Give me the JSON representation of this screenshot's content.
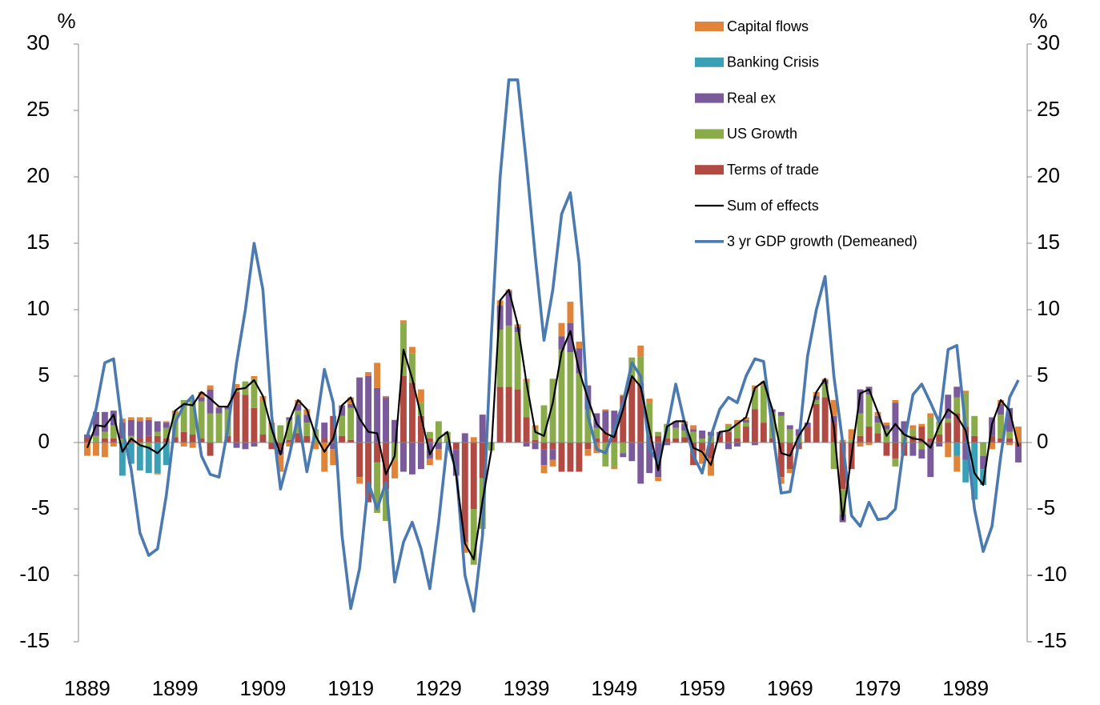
{
  "chart_data": {
    "type": "bar",
    "y_label": "%",
    "y2_label": "%",
    "legend": "top",
    "stacked": true,
    "xlim": [
      1888,
      1996
    ],
    "xticks": [
      1889,
      1899,
      1909,
      1919,
      1929,
      1939,
      1949,
      1959,
      1969,
      1979,
      1989
    ],
    "ylim": [
      -15,
      30
    ],
    "yticks": [
      -15,
      -10,
      -5,
      0,
      5,
      10,
      15,
      20,
      25,
      30
    ],
    "y2lim": [
      -15,
      30
    ],
    "y2ticks": [
      -15,
      -10,
      -5,
      0,
      5,
      10,
      15,
      20,
      25,
      30
    ],
    "x": [
      1889,
      1890,
      1891,
      1892,
      1893,
      1894,
      1895,
      1896,
      1897,
      1898,
      1899,
      1900,
      1901,
      1902,
      1903,
      1904,
      1905,
      1906,
      1907,
      1908,
      1909,
      1910,
      1911,
      1912,
      1913,
      1914,
      1915,
      1916,
      1917,
      1918,
      1919,
      1920,
      1921,
      1922,
      1923,
      1924,
      1925,
      1926,
      1927,
      1928,
      1929,
      1930,
      1931,
      1932,
      1933,
      1934,
      1935,
      1936,
      1937,
      1938,
      1939,
      1940,
      1941,
      1942,
      1943,
      1944,
      1945,
      1946,
      1947,
      1948,
      1949,
      1950,
      1951,
      1952,
      1953,
      1954,
      1955,
      1956,
      1957,
      1958,
      1959,
      1960,
      1961,
      1962,
      1963,
      1964,
      1965,
      1966,
      1967,
      1968,
      1969,
      1970,
      1971,
      1972,
      1973,
      1974,
      1975,
      1976,
      1977,
      1978,
      1979,
      1980,
      1981,
      1982,
      1983,
      1984,
      1985,
      1986,
      1987,
      1988,
      1989,
      1990,
      1991,
      1992,
      1993,
      1994,
      1995
    ],
    "series": [
      {
        "name": "Capital flows",
        "type": "bar",
        "color": "#e0843a",
        "values": [
          -1.0,
          -1.0,
          -1.1,
          -0.3,
          0.3,
          0.2,
          0.3,
          0.2,
          -0.1,
          0.1,
          0.2,
          -0.3,
          -0.4,
          0.4,
          0.3,
          0.1,
          0,
          0.3,
          0,
          0.2,
          0.4,
          0.3,
          -1.3,
          -0.3,
          0.3,
          0.4,
          -0.5,
          -2.2,
          -1.2,
          0,
          0.5,
          -0.5,
          0.3,
          1.9,
          0.1,
          -1.4,
          0.2,
          0.5,
          1.0,
          -0.5,
          -0.8,
          0,
          0,
          -0.8,
          0.4,
          0,
          0,
          0.4,
          0.1,
          0.2,
          0.2,
          0.3,
          -0.6,
          -0.5,
          1.0,
          1.6,
          0.5,
          -0.5,
          -0.8,
          0.1,
          -0.2,
          0.1,
          0,
          0.8,
          0.3,
          -0.3,
          0,
          0,
          0.2,
          0.3,
          -1.0,
          -1.3,
          0,
          0.1,
          0.4,
          0.2,
          0.3,
          0.3,
          0,
          -0.5,
          -0.3,
          0,
          0,
          0.3,
          0.1,
          1.2,
          0.2,
          0.8,
          -0.3,
          -0.2,
          0.3,
          0.2,
          0.2,
          0,
          0.3,
          0.2,
          0.3,
          0,
          -1.1,
          -1.2,
          0.2,
          0,
          0,
          -0.5,
          0.3,
          -0.2,
          1.2
        ]
      },
      {
        "name": "Banking Crisis",
        "type": "bar",
        "color": "#3aa0b5",
        "values": [
          0,
          0,
          0,
          0,
          -2.5,
          -1.6,
          -1.8,
          -2.0,
          -2.3,
          -1.7,
          0,
          0,
          0,
          0,
          0,
          0,
          0,
          0,
          0,
          0,
          0,
          0,
          0,
          0,
          0,
          0,
          0,
          0,
          0,
          0,
          0,
          0,
          0,
          0,
          0,
          0,
          0,
          0,
          0,
          0,
          0,
          0,
          0,
          0,
          0,
          0,
          0,
          0,
          0,
          0,
          0,
          0,
          0,
          0,
          0,
          0,
          0,
          0,
          0,
          0,
          0,
          0,
          0,
          0,
          0,
          0,
          0,
          0,
          0,
          0,
          0,
          0,
          0,
          0,
          0,
          0,
          0,
          0,
          0,
          0,
          0,
          0,
          0,
          0,
          0,
          0,
          0,
          0,
          0,
          0,
          0,
          0,
          0,
          0,
          0,
          0,
          0,
          0,
          0,
          -1.0,
          -1.7,
          -4.3,
          -1.2,
          0,
          0,
          0,
          0
        ]
      },
      {
        "name": "Real ex",
        "type": "bar",
        "color": "#7a5a9a",
        "values": [
          0.3,
          1.8,
          1.5,
          1.1,
          1.2,
          1.2,
          1.3,
          1.2,
          0.8,
          0.4,
          0,
          0,
          0,
          0.3,
          1.8,
          0.4,
          0.2,
          -0.4,
          -0.5,
          -0.3,
          0,
          0,
          -0.4,
          0.2,
          0.5,
          0.6,
          0,
          1.2,
          -0.5,
          0.8,
          0.3,
          4.9,
          5.0,
          4.1,
          3.4,
          1.7,
          -2.2,
          -2.4,
          -2.0,
          -1.2,
          -0.5,
          0,
          -2.0,
          0.7,
          0,
          2.1,
          0,
          1.8,
          2.6,
          0.4,
          -0.3,
          -0.5,
          -1.2,
          -0.8,
          1.0,
          2.2,
          1.9,
          1.8,
          1.1,
          1.6,
          1.4,
          -0.3,
          -1.4,
          -3.1,
          -2.3,
          -2.6,
          -0.2,
          0.5,
          0.5,
          0.2,
          0.6,
          0.3,
          0.3,
          -0.5,
          -0.3,
          0.2,
          -0.2,
          0,
          0.2,
          0.3,
          0.3,
          0.5,
          0.3,
          0.3,
          0.3,
          0.5,
          -0.6,
          0,
          1.8,
          0.6,
          0.5,
          0.3,
          3.0,
          1.0,
          -1.0,
          -0.7,
          -2.6,
          -0.3,
          1.8,
          0.8,
          -1.3,
          0,
          -1.0,
          1.4,
          0.8,
          1.8,
          -1.2
        ]
      },
      {
        "name": "US Growth",
        "type": "bar",
        "color": "#8aab4a",
        "values": [
          0,
          0.5,
          0.5,
          1.0,
          0.3,
          0.3,
          -0.3,
          -0.3,
          0.3,
          0.8,
          1.8,
          2.4,
          2.6,
          2.8,
          2.2,
          2.2,
          2.0,
          0.3,
          1.0,
          2.2,
          2.5,
          1.2,
          1.3,
          1.5,
          1.7,
          1.0,
          1.0,
          0,
          0,
          1.5,
          2.4,
          0,
          0,
          -3.8,
          -2.4,
          -1.3,
          4.0,
          2.2,
          1.0,
          0.5,
          1.6,
          0.8,
          0,
          0,
          -4.2,
          -3.8,
          -0.6,
          4.3,
          4.6,
          4.3,
          2.7,
          0.8,
          2.8,
          4.8,
          7.0,
          6.8,
          5.2,
          2.5,
          0.8,
          -1.8,
          -1.8,
          -0.8,
          1.6,
          2.0,
          2.5,
          0.3,
          1.1,
          0.8,
          0.5,
          0.8,
          0.3,
          0.5,
          0,
          0.5,
          1.0,
          0.3,
          1.5,
          2.8,
          2.0,
          2.0,
          1.0,
          0.5,
          0,
          0.3,
          1.0,
          -2.0,
          -1.9,
          0.2,
          1.7,
          2.4,
          0.8,
          1.0,
          -0.6,
          0.6,
          0.5,
          -0.5,
          1.6,
          1.0,
          0.3,
          1.2,
          2.5,
          1.5,
          -1.0,
          0,
          1.8,
          0.5,
          0
        ]
      },
      {
        "name": "Terms of trade",
        "type": "bar",
        "color": "#b24a44",
        "values": [
          0.3,
          0,
          0.3,
          0.3,
          0,
          0.2,
          0.3,
          0.5,
          0.5,
          0.3,
          0.4,
          0.8,
          0.6,
          0.3,
          -1.0,
          0,
          0.5,
          3.8,
          3.6,
          2.6,
          0.6,
          -0.5,
          -0.5,
          0.2,
          0.7,
          0.5,
          0,
          0.3,
          2.0,
          0.5,
          0.2,
          -2.6,
          -4.5,
          -1.5,
          -3.5,
          0,
          5.0,
          4.5,
          2.0,
          0.3,
          0,
          0,
          -0.5,
          -7.5,
          -5.0,
          -2.7,
          0,
          4.2,
          4.2,
          4.0,
          1.9,
          0.2,
          -0.5,
          -0.5,
          -2.2,
          -2.2,
          -2.2,
          -0.5,
          0.3,
          0.8,
          1.0,
          3.5,
          4.8,
          4.5,
          0.5,
          0.5,
          0.3,
          0.3,
          0.4,
          -1.7,
          -0.6,
          -1.2,
          0.5,
          0.8,
          0.3,
          1.2,
          2.5,
          1.5,
          0.3,
          -2.6,
          -2.0,
          -0.5,
          1.2,
          2.9,
          3.4,
          1.5,
          -3.5,
          -2.0,
          0.5,
          1.2,
          0.7,
          -1.0,
          -1.2,
          -1.0,
          0.5,
          1.2,
          0.3,
          0.6,
          1.5,
          2.2,
          1.2,
          0.5,
          0,
          0.5,
          0.3,
          0.3,
          -0.3
        ]
      },
      {
        "name": "Sum of effects",
        "type": "line",
        "color": "#000000",
        "values": [
          -0.4,
          1.3,
          1.2,
          2.1,
          -0.7,
          0.3,
          -0.2,
          -0.4,
          -0.8,
          -0.1,
          2.4,
          2.9,
          2.8,
          3.8,
          3.3,
          2.7,
          2.7,
          4.0,
          4.1,
          4.7,
          3.5,
          1.0,
          -0.9,
          1.6,
          3.2,
          2.5,
          0.5,
          -0.7,
          0.3,
          2.8,
          3.4,
          1.8,
          0.8,
          0.7,
          -2.4,
          -1.0,
          7.0,
          4.8,
          2.0,
          -0.9,
          0.3,
          0.8,
          -2.5,
          -7.6,
          -8.8,
          -4.4,
          -0.6,
          10.7,
          11.5,
          8.9,
          4.5,
          0.8,
          0.5,
          3.0,
          6.8,
          8.4,
          5.4,
          3.3,
          1.4,
          0.7,
          0.4,
          2.5,
          5.0,
          4.2,
          1.0,
          -2.1,
          1.2,
          1.6,
          1.6,
          -0.4,
          -0.7,
          -1.7,
          0.8,
          0.9,
          1.4,
          1.9,
          4.1,
          4.6,
          2.5,
          -0.8,
          -1.0,
          0.5,
          1.5,
          3.8,
          4.8,
          1.2,
          -5.8,
          -1.0,
          3.7,
          4.0,
          2.3,
          0.5,
          1.4,
          0.6,
          0.3,
          0.2,
          -0.4,
          1.3,
          2.5,
          2.0,
          0.9,
          -2.3,
          -3.2,
          1.4,
          3.2,
          2.4,
          -0.3
        ]
      },
      {
        "name": "3 yr GDP growth (Demeaned)",
        "type": "line",
        "color": "#4a7ab0",
        "values": [
          0.5,
          2.5,
          6.0,
          6.3,
          1.0,
          -2.0,
          -6.8,
          -8.5,
          -8.0,
          -4.0,
          1.5,
          2.8,
          3.5,
          -1.0,
          -2.4,
          -2.6,
          1.0,
          6.0,
          10.0,
          15.0,
          11.5,
          2.0,
          -3.5,
          -1.0,
          2.0,
          -2.2,
          1.0,
          5.5,
          3.0,
          -7.0,
          -12.5,
          -9.5,
          -3.0,
          -5.0,
          -3.0,
          -10.5,
          -7.5,
          -6.0,
          -8.0,
          -11.0,
          -6.0,
          0.0,
          -2.0,
          -10.0,
          -12.7,
          -7.0,
          8.0,
          20.0,
          27.3,
          27.3,
          21.0,
          14.0,
          7.7,
          11.5,
          17.2,
          18.8,
          13.5,
          2.0,
          -0.5,
          -0.8,
          1.0,
          3.0,
          6.0,
          5.0,
          -0.5,
          -1.5,
          1.0,
          4.4,
          1.5,
          -1.0,
          -2.3,
          0.5,
          2.5,
          3.4,
          3.0,
          5.0,
          6.3,
          6.1,
          1.0,
          -3.8,
          -3.7,
          0.0,
          6.5,
          10.0,
          12.5,
          5.0,
          0.0,
          -5.5,
          -6.3,
          -4.5,
          -5.8,
          -5.7,
          -5.0,
          0.0,
          3.6,
          4.4,
          3.0,
          1.5,
          7.0,
          7.3,
          1.0,
          -5.0,
          -8.2,
          -6.3,
          -1.0,
          3.4,
          4.7
        ]
      }
    ]
  }
}
